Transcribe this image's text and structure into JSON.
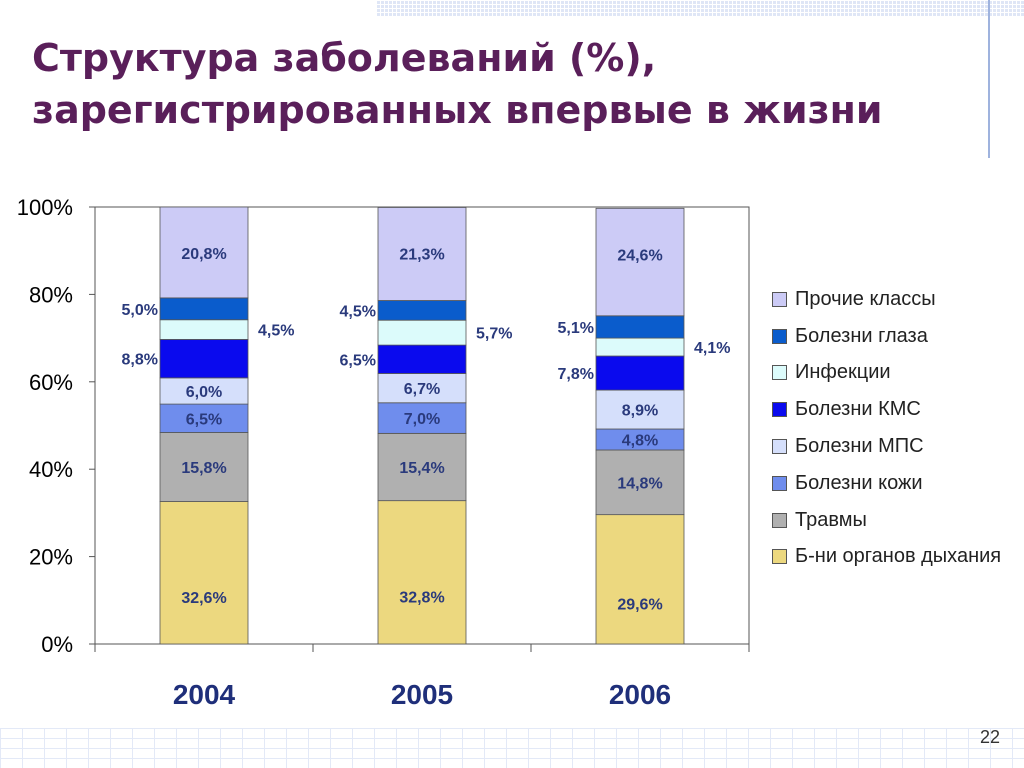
{
  "slide": {
    "title_line1": "Структура заболеваний (%),",
    "title_line2": "зарегистрированных впервые в жизни",
    "page_number": "22"
  },
  "chart_data": {
    "type": "bar",
    "stacked": true,
    "percent_stacked": true,
    "categories": [
      "2004",
      "2005",
      "2006"
    ],
    "y_ticks": [
      "0%",
      "20%",
      "40%",
      "60%",
      "80%",
      "100%"
    ],
    "ylim": [
      0,
      100
    ],
    "legend_position": "right",
    "series": [
      {
        "name": "Б-ни органов дыхания",
        "color": "#ecd87f",
        "values": [
          32.6,
          32.8,
          29.6
        ],
        "labels": [
          "32,6%",
          "32,8%",
          "29,6%"
        ]
      },
      {
        "name": "Травмы",
        "color": "#b0b0b0",
        "values": [
          15.8,
          15.4,
          14.8
        ],
        "labels": [
          "15,8%",
          "15,4%",
          "14,8%"
        ]
      },
      {
        "name": "Болезни кожи",
        "color": "#6f8ded",
        "values": [
          6.5,
          7.0,
          4.8
        ],
        "labels": [
          "6,5%",
          "7,0%",
          "4,8%"
        ]
      },
      {
        "name": "Болезни МПС",
        "color": "#d5dffb",
        "values": [
          6.0,
          6.7,
          8.9
        ],
        "labels": [
          "6,0%",
          "6,7%",
          "8,9%"
        ]
      },
      {
        "name": "Болезни КМС",
        "color": "#0a0aee",
        "values": [
          8.8,
          6.5,
          7.8
        ],
        "labels": [
          "8,8%",
          "6,5%",
          "7,8%"
        ]
      },
      {
        "name": "Инфекции",
        "color": "#dcfbfb",
        "values": [
          4.5,
          5.7,
          4.1
        ],
        "labels": [
          "4,5%",
          "5,7%",
          "4,1%"
        ]
      },
      {
        "name": "Болезни глаза",
        "color": "#0a5ccc",
        "values": [
          5.0,
          4.5,
          5.1
        ],
        "labels": [
          "5,0%",
          "4,5%",
          "5,1%"
        ]
      },
      {
        "name": "Прочие классы",
        "color": "#cccbf6",
        "values": [
          20.8,
          21.3,
          24.6
        ],
        "labels": [
          "20,8%",
          "21,3%",
          "24,6%"
        ]
      }
    ],
    "legend_order": [
      "Прочие классы",
      "Болезни глаза",
      "Инфекции",
      "Болезни КМС",
      "Болезни МПС",
      "Болезни кожи",
      "Травмы",
      "Б-ни органов дыхания"
    ]
  }
}
